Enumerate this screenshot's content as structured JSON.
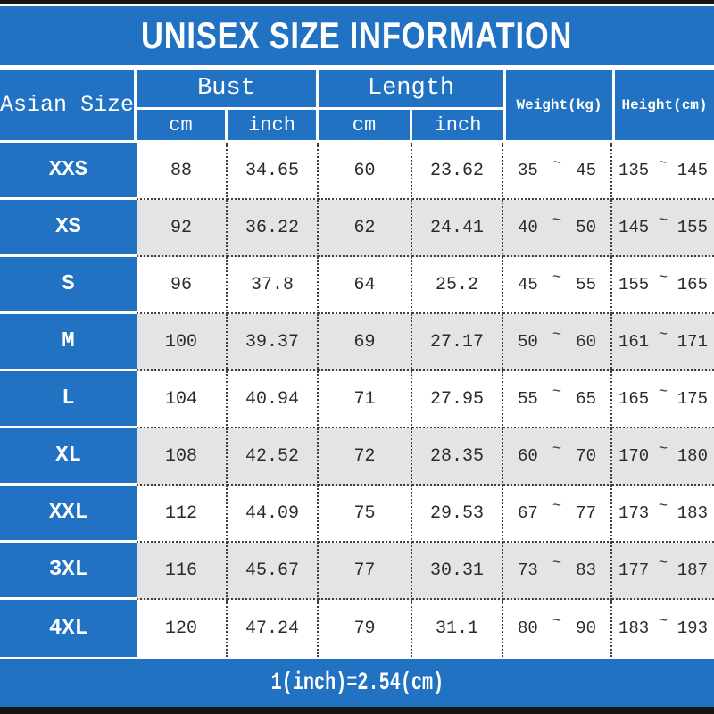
{
  "page": {
    "title": "UNISEX SIZE INFORMATION",
    "footer_note": "1(inch)=2.54(cm)"
  },
  "colors": {
    "primary_blue": "#2272c3",
    "row_alt_gray": "#e4e4e4",
    "border_bar_black": "#141414",
    "dotted_line": "#3f3f3f",
    "text_dark": "#2b2b2b",
    "header_text_white": "#ffffff"
  },
  "table": {
    "corner_label": "Asian Size",
    "bust_label": "Bust",
    "length_label": "Length",
    "weight_label": "Weight(kg)",
    "height_label": "Height(cm)",
    "cm_label": "cm",
    "inch_label": "inch",
    "range_separator": "~",
    "rows": [
      {
        "size": "XXS",
        "bust_cm": "88",
        "bust_inch": "34.65",
        "length_cm": "60",
        "length_inch": "23.62",
        "weight_min": "35",
        "weight_max": "45",
        "height_min": "135",
        "height_max": "145"
      },
      {
        "size": "XS",
        "bust_cm": "92",
        "bust_inch": "36.22",
        "length_cm": "62",
        "length_inch": "24.41",
        "weight_min": "40",
        "weight_max": "50",
        "height_min": "145",
        "height_max": "155"
      },
      {
        "size": "S",
        "bust_cm": "96",
        "bust_inch": "37.8",
        "length_cm": "64",
        "length_inch": "25.2",
        "weight_min": "45",
        "weight_max": "55",
        "height_min": "155",
        "height_max": "165"
      },
      {
        "size": "M",
        "bust_cm": "100",
        "bust_inch": "39.37",
        "length_cm": "69",
        "length_inch": "27.17",
        "weight_min": "50",
        "weight_max": "60",
        "height_min": "161",
        "height_max": "171"
      },
      {
        "size": "L",
        "bust_cm": "104",
        "bust_inch": "40.94",
        "length_cm": "71",
        "length_inch": "27.95",
        "weight_min": "55",
        "weight_max": "65",
        "height_min": "165",
        "height_max": "175"
      },
      {
        "size": "XL",
        "bust_cm": "108",
        "bust_inch": "42.52",
        "length_cm": "72",
        "length_inch": "28.35",
        "weight_min": "60",
        "weight_max": "70",
        "height_min": "170",
        "height_max": "180"
      },
      {
        "size": "XXL",
        "bust_cm": "112",
        "bust_inch": "44.09",
        "length_cm": "75",
        "length_inch": "29.53",
        "weight_min": "67",
        "weight_max": "77",
        "height_min": "173",
        "height_max": "183"
      },
      {
        "size": "3XL",
        "bust_cm": "116",
        "bust_inch": "45.67",
        "length_cm": "77",
        "length_inch": "30.31",
        "weight_min": "73",
        "weight_max": "83",
        "height_min": "177",
        "height_max": "187"
      },
      {
        "size": "4XL",
        "bust_cm": "120",
        "bust_inch": "47.24",
        "length_cm": "79",
        "length_inch": "31.1",
        "weight_min": "80",
        "weight_max": "90",
        "height_min": "183",
        "height_max": "193"
      }
    ]
  },
  "chart_data": {
    "type": "table",
    "title": "UNISEX SIZE INFORMATION",
    "note": "1(inch)=2.54(cm)",
    "columns": [
      "Asian Size",
      "Bust cm",
      "Bust inch",
      "Length cm",
      "Length inch",
      "Weight(kg)",
      "Height(cm)"
    ],
    "rows": [
      [
        "XXS",
        88,
        34.65,
        60,
        23.62,
        "35~45",
        "135~145"
      ],
      [
        "XS",
        92,
        36.22,
        62,
        24.41,
        "40~50",
        "145~155"
      ],
      [
        "S",
        96,
        37.8,
        64,
        25.2,
        "45~55",
        "155~165"
      ],
      [
        "M",
        100,
        39.37,
        69,
        27.17,
        "50~60",
        "161~171"
      ],
      [
        "L",
        104,
        40.94,
        71,
        27.95,
        "55~65",
        "165~175"
      ],
      [
        "XL",
        108,
        42.52,
        72,
        28.35,
        "60~70",
        "170~180"
      ],
      [
        "XXL",
        112,
        44.09,
        75,
        29.53,
        "67~77",
        "173~183"
      ],
      [
        "3XL",
        116,
        45.67,
        77,
        30.31,
        "73~83",
        "177~187"
      ],
      [
        "4XL",
        120,
        47.24,
        79,
        31.1,
        "80~90",
        "183~193"
      ]
    ]
  }
}
